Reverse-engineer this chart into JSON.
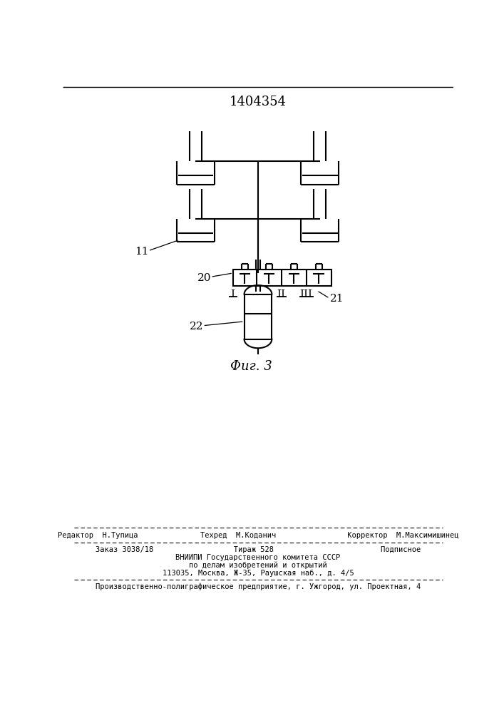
{
  "title_text": "1404354",
  "fig_label": "Фиг. 3",
  "background_color": "#ffffff",
  "line_color": "#000000",
  "label_11": "11",
  "label_20": "20",
  "label_21": "21",
  "label_22": "22",
  "label_I": "I",
  "label_II": "II",
  "label_III": "III",
  "footer_line1": "Редактор  Н.Тупица              Техред  М.Коданич                Корректор  М.Максимишинец",
  "footer_line2": "Заказ 3038/18                  Тираж 528                        Подписное",
  "footer_line3": "ВНИИПИ Государственного комитета СССР",
  "footer_line4": "по делам изобретений и открытий",
  "footer_line5": "113035, Москва, Ж-35, Раушская наб., д. 4/5",
  "footer_line6": "Производственно-полиграфическое предприятие, г. Ужгород, ул. Проектная, 4"
}
